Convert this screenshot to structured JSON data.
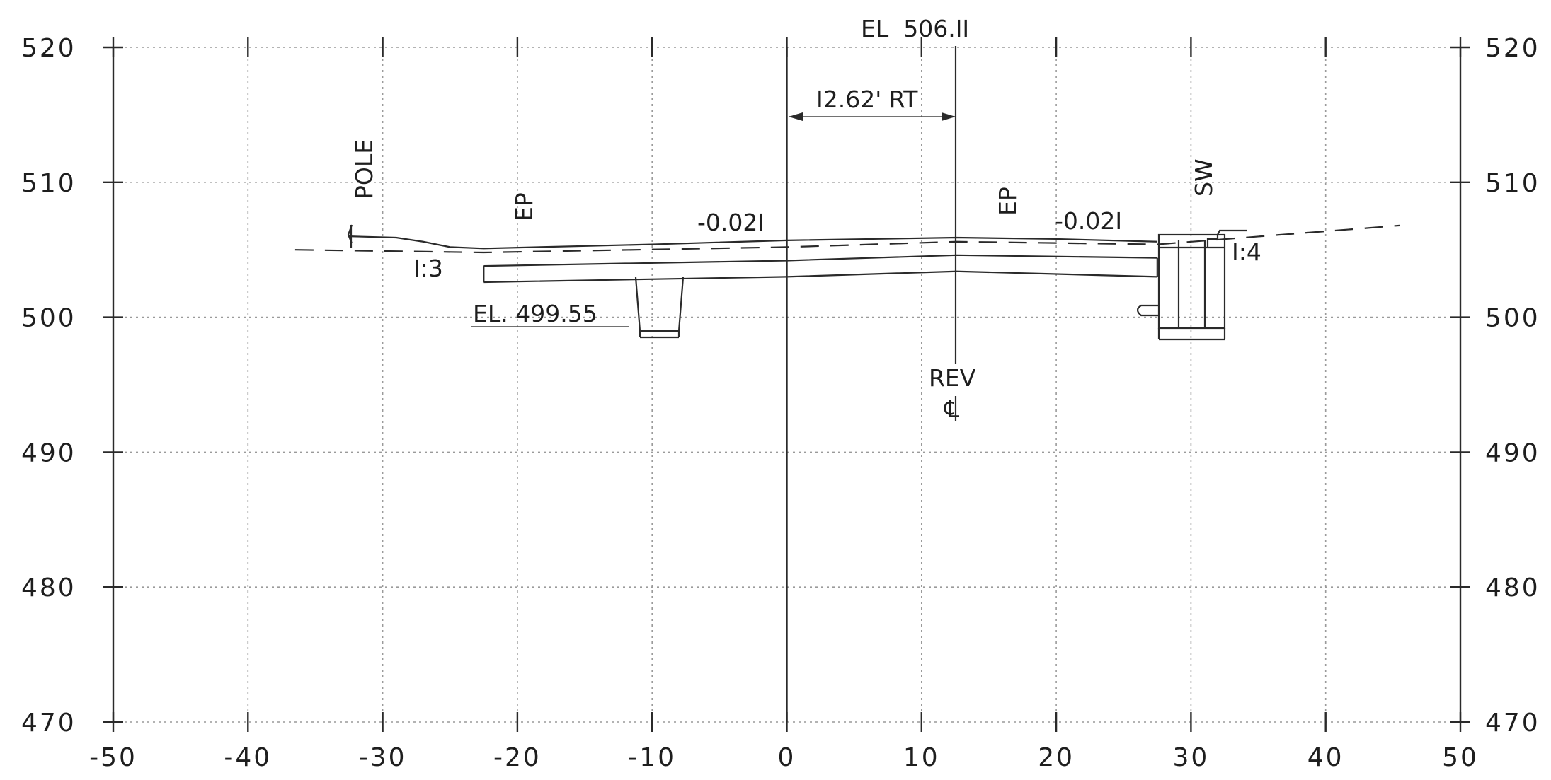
{
  "chart_data": {
    "type": "line",
    "x_ticks": [
      -50,
      -40,
      -30,
      -20,
      -10,
      0,
      10,
      20,
      30,
      40,
      50
    ],
    "x_tick_labels": [
      "-50",
      "-40",
      "-30",
      "-20",
      "-10",
      "0",
      "10",
      "20",
      "30",
      "40",
      "50"
    ],
    "y_ticks": [
      470,
      480,
      490,
      500,
      510,
      520
    ],
    "y_tick_labels": [
      "470",
      "480",
      "490",
      "500",
      "510",
      "520"
    ],
    "xlim": [
      -50,
      50
    ],
    "ylim": [
      470,
      520
    ],
    "grid": true,
    "series": [
      {
        "x": [
          -32.5,
          -29,
          -27,
          -25,
          -22.5,
          -10,
          0,
          12.6,
          20,
          27.5
        ],
        "y": [
          506.0,
          505.9,
          505.6,
          505.2,
          505.1,
          505.4,
          505.7,
          505.9,
          505.8,
          505.6
        ]
      },
      {
        "x": [
          -36.5,
          -22.5,
          0,
          12.6,
          27.5,
          45.5
        ],
        "y": [
          505.0,
          504.8,
          505.2,
          505.6,
          505.4,
          506.8
        ]
      },
      {
        "x": [
          -22.5,
          0,
          12.6,
          27.5
        ],
        "y": [
          503.8,
          504.2,
          504.6,
          504.4
        ]
      },
      {
        "x": [
          -22.5,
          0,
          12.6,
          27.5
        ],
        "y": [
          502.6,
          503.0,
          503.4,
          503.0
        ]
      }
    ],
    "annotations": {
      "top_elevation": "EL  506.II",
      "offset": "I2.62' RT",
      "grade_left": "-0.02I",
      "grade_right": "-0.02I",
      "slope_left": "I:3",
      "slope_right": "I:4",
      "ditch_elevation": "EL. 499.55",
      "pole": "POLE",
      "ep_left": "EP",
      "ep_right": "EP",
      "sidewalk": "SW",
      "rev": "REV",
      "centerline": "℄"
    }
  }
}
